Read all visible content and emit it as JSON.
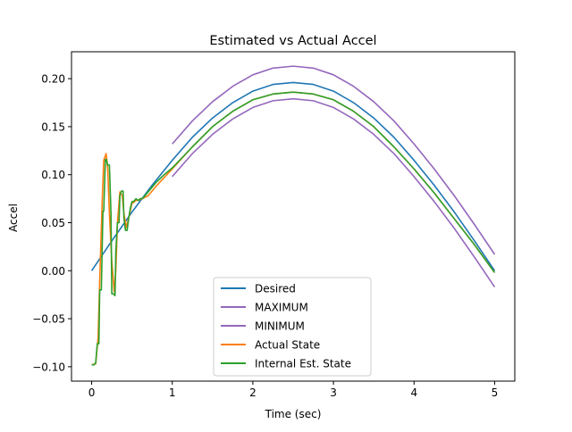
{
  "chart_data": {
    "type": "line",
    "title": "Estimated vs Actual Accel",
    "xlabel": "Time (sec)",
    "ylabel": "Accel",
    "xlim": [
      -0.25,
      5.25
    ],
    "ylim": [
      -0.115,
      0.228
    ],
    "xticks": [
      0,
      1,
      2,
      3,
      4,
      5
    ],
    "xtick_labels": [
      "0",
      "1",
      "2",
      "3",
      "4",
      "5"
    ],
    "yticks": [
      -0.1,
      -0.05,
      0.0,
      0.05,
      0.1,
      0.15,
      0.2
    ],
    "ytick_labels": [
      "−0.10",
      "−0.05",
      "0.00",
      "0.05",
      "0.10",
      "0.15",
      "0.20"
    ],
    "grid": false,
    "legend_position": "lower center",
    "series": [
      {
        "name": "Desired",
        "color": "#1f77b4",
        "x": [
          0,
          0.25,
          0.5,
          0.75,
          1.0,
          1.25,
          1.5,
          1.75,
          2.0,
          2.25,
          2.5,
          2.75,
          3.0,
          3.25,
          3.5,
          3.75,
          4.0,
          4.25,
          4.5,
          4.75,
          5.0
        ],
        "y": [
          0.0,
          0.031,
          0.061,
          0.089,
          0.115,
          0.139,
          0.159,
          0.175,
          0.187,
          0.194,
          0.196,
          0.194,
          0.187,
          0.175,
          0.159,
          0.139,
          0.115,
          0.089,
          0.061,
          0.031,
          0.0
        ]
      },
      {
        "name": "MAXIMUM",
        "color": "#9467bd",
        "x": [
          1.0,
          1.25,
          1.5,
          1.75,
          2.0,
          2.25,
          2.5,
          2.75,
          3.0,
          3.25,
          3.5,
          3.75,
          4.0,
          4.25,
          4.5,
          4.75,
          5.0
        ],
        "y": [
          0.132,
          0.156,
          0.176,
          0.192,
          0.204,
          0.211,
          0.213,
          0.211,
          0.204,
          0.192,
          0.176,
          0.156,
          0.132,
          0.106,
          0.078,
          0.048,
          0.017
        ]
      },
      {
        "name": "MINIMUM",
        "color": "#9467bd",
        "x": [
          1.0,
          1.25,
          1.5,
          1.75,
          2.0,
          2.25,
          2.5,
          2.75,
          3.0,
          3.25,
          3.5,
          3.75,
          4.0,
          4.25,
          4.5,
          4.75,
          5.0
        ],
        "y": [
          0.098,
          0.122,
          0.142,
          0.158,
          0.17,
          0.177,
          0.179,
          0.177,
          0.17,
          0.158,
          0.142,
          0.122,
          0.098,
          0.072,
          0.044,
          0.014,
          -0.017
        ]
      },
      {
        "name": "Actual State",
        "color": "#ff7f0e",
        "x": [
          0,
          0.05,
          0.08,
          0.1,
          0.13,
          0.15,
          0.18,
          0.2,
          0.22,
          0.25,
          0.28,
          0.3,
          0.32,
          0.35,
          0.38,
          0.4,
          0.43,
          0.46,
          0.5,
          0.55,
          0.6,
          0.7,
          0.8,
          0.9,
          1.0,
          1.25,
          1.5,
          1.75,
          2.0,
          2.25,
          2.5,
          2.75,
          3.0,
          3.25,
          3.5,
          3.75,
          4.0,
          4.25,
          4.5,
          4.75,
          5.0
        ],
        "y": [
          -0.098,
          -0.097,
          -0.07,
          -0.01,
          0.07,
          0.115,
          0.122,
          0.105,
          0.06,
          0.01,
          -0.022,
          0.0,
          0.05,
          0.082,
          0.078,
          0.06,
          0.045,
          0.055,
          0.07,
          0.073,
          0.074,
          0.078,
          0.088,
          0.097,
          0.106,
          0.129,
          0.15,
          0.166,
          0.178,
          0.184,
          0.186,
          0.184,
          0.178,
          0.166,
          0.15,
          0.129,
          0.106,
          0.081,
          0.054,
          0.027,
          -0.002
        ]
      },
      {
        "name": "Internal Est. State",
        "color": "#2ca02c",
        "x": [
          0,
          0.03,
          0.05,
          0.07,
          0.09,
          0.1,
          0.12,
          0.14,
          0.15,
          0.17,
          0.18,
          0.2,
          0.22,
          0.24,
          0.25,
          0.27,
          0.29,
          0.3,
          0.32,
          0.34,
          0.35,
          0.37,
          0.39,
          0.4,
          0.42,
          0.44,
          0.46,
          0.48,
          0.5,
          0.52,
          0.55,
          0.58,
          0.6,
          0.63,
          0.66,
          0.7,
          0.75,
          0.8,
          0.85,
          0.9,
          1.0,
          1.25,
          1.5,
          1.75,
          2.0,
          2.25,
          2.5,
          2.75,
          3.0,
          3.25,
          3.5,
          3.75,
          4.0,
          4.25,
          4.5,
          4.75,
          5.0
        ],
        "y": [
          -0.098,
          -0.098,
          -0.096,
          -0.076,
          -0.076,
          -0.02,
          -0.02,
          0.062,
          0.062,
          0.116,
          0.116,
          0.11,
          0.11,
          0.06,
          -0.024,
          -0.024,
          -0.026,
          0.02,
          0.05,
          0.05,
          0.078,
          0.083,
          0.083,
          0.055,
          0.042,
          0.042,
          0.055,
          0.065,
          0.072,
          0.072,
          0.075,
          0.073,
          0.075,
          0.075,
          0.078,
          0.082,
          0.087,
          0.092,
          0.096,
          0.1,
          0.107,
          0.129,
          0.15,
          0.166,
          0.178,
          0.184,
          0.186,
          0.184,
          0.178,
          0.166,
          0.15,
          0.129,
          0.106,
          0.081,
          0.054,
          0.027,
          -0.002
        ]
      }
    ]
  }
}
